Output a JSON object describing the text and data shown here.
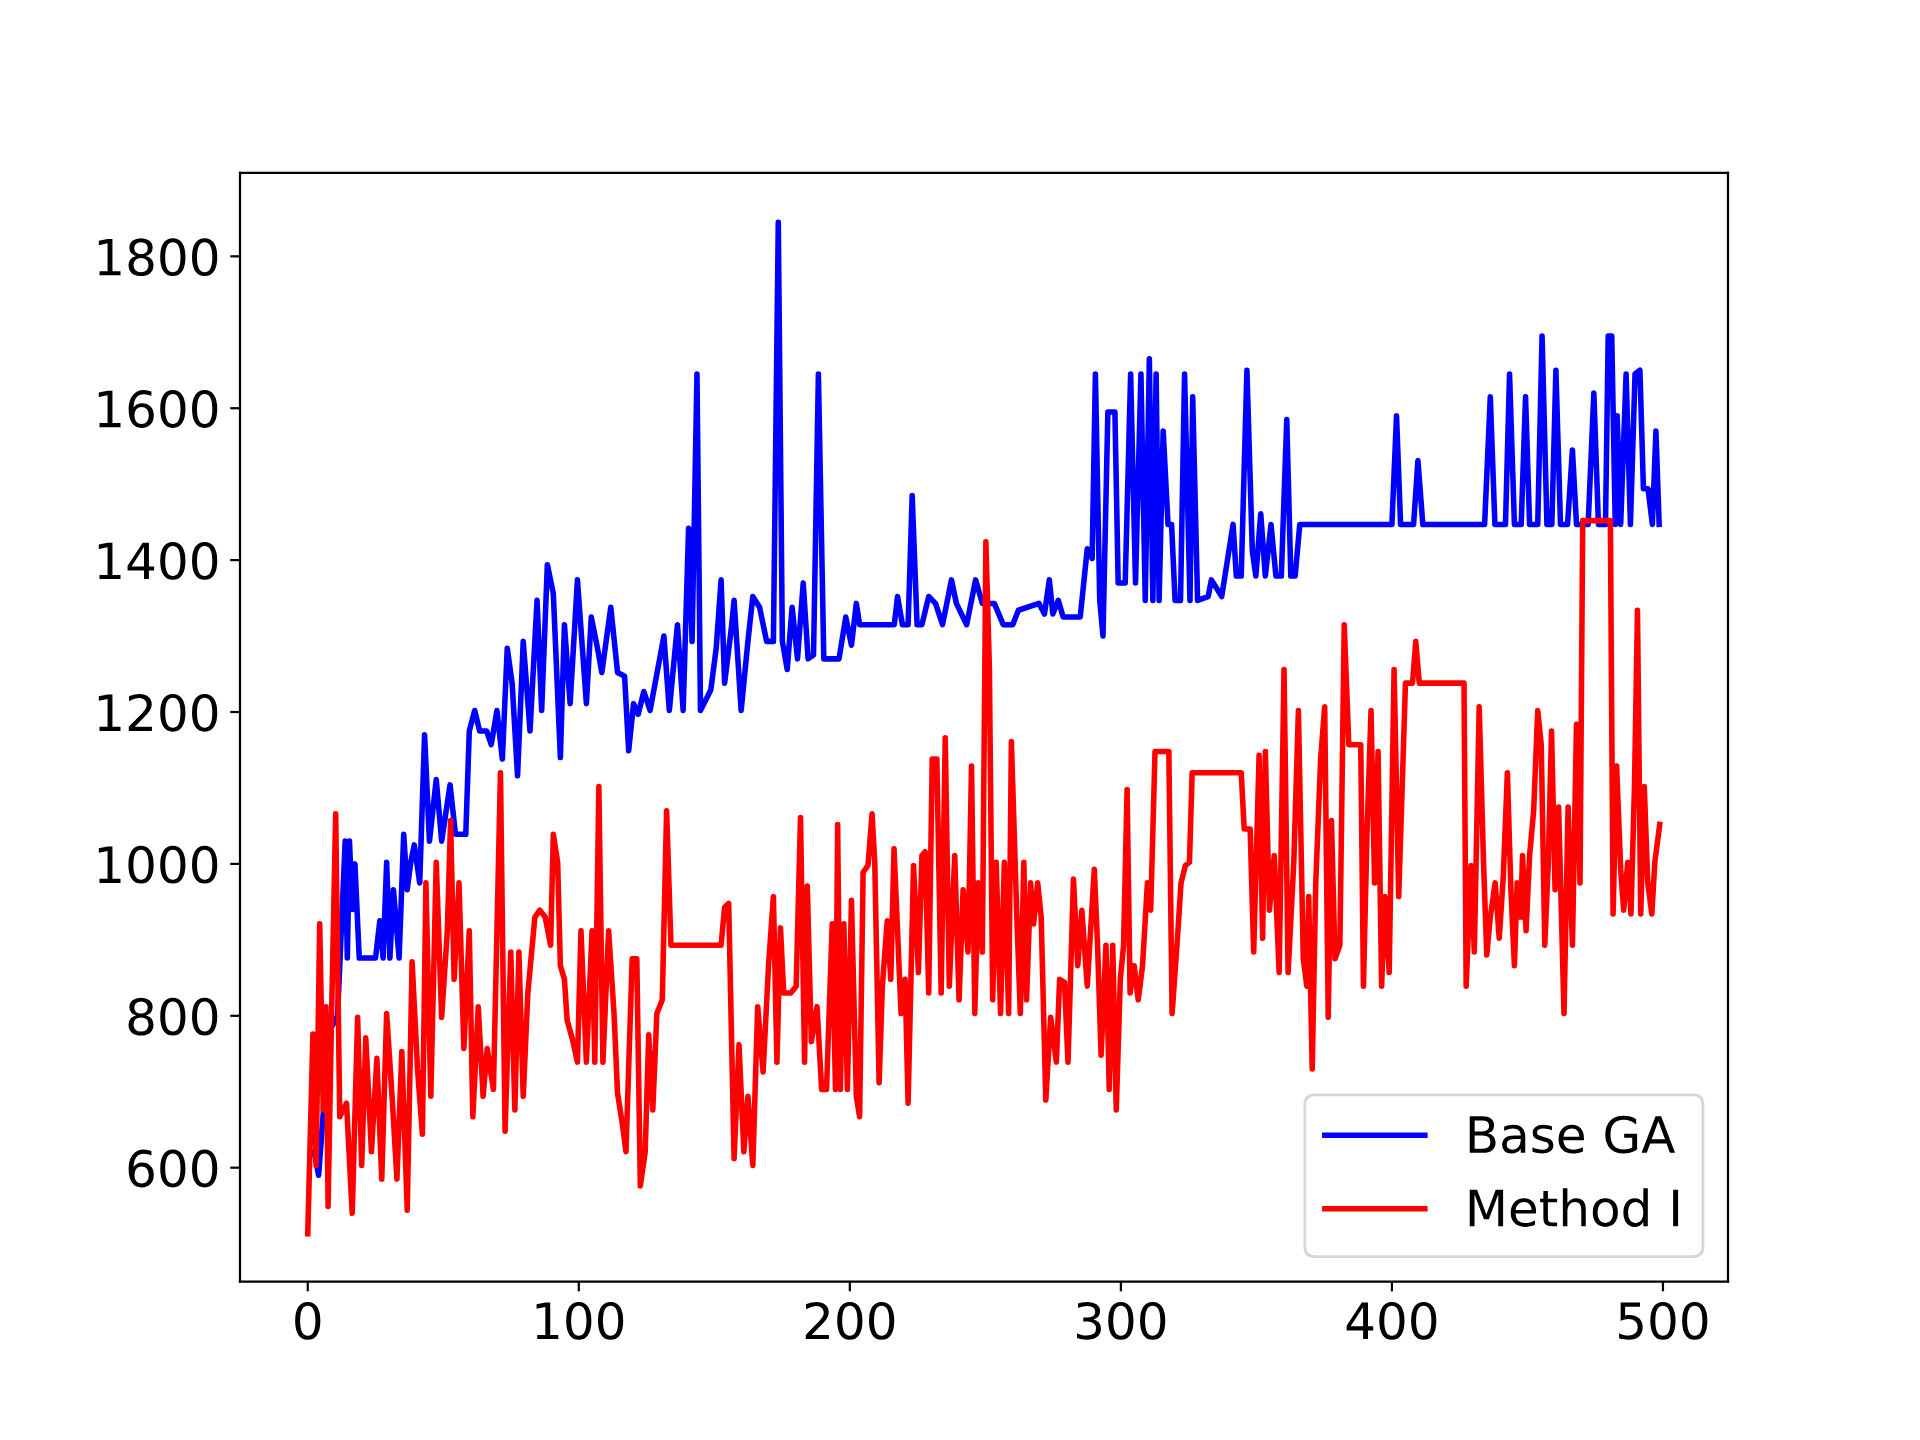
{
  "chart_data": {
    "type": "line",
    "xlim": [
      -25,
      524
    ],
    "ylim": [
      450,
      1910
    ],
    "xticks": [
      0,
      100,
      200,
      300,
      400,
      500
    ],
    "yticks": [
      600,
      800,
      1000,
      1200,
      1400,
      1600,
      1800
    ],
    "grid": false,
    "legend": "bottom right",
    "line_style": "solid",
    "marker": "none",
    "series": [
      {
        "name": "Base GA",
        "color": "#0000ff",
        "x": [
          2.4,
          4,
          8,
          11,
          13.8,
          14.6,
          15.4,
          16.4,
          17.4,
          19,
          25,
          26.6,
          27.8,
          29.1,
          30.3,
          31.6,
          33.7,
          35.4,
          36.7,
          38,
          39.3,
          41.3,
          43.1,
          44.9,
          47.4,
          49.4,
          52.5,
          54.5,
          58.3,
          59.6,
          61.6,
          63.4,
          66,
          67.7,
          69.8,
          71.8,
          73.6,
          75.4,
          77.4,
          79.5,
          82,
          84.6,
          86.3,
          88.4,
          90.6,
          93.2,
          94.7,
          96.8,
          99.5,
          102.8,
          104.6,
          106.9,
          108.5,
          111.8,
          114.3,
          116.9,
          118.4,
          120.2,
          121.9,
          124,
          126.3,
          131.4,
          133.4,
          136.4,
          138.5,
          140.5,
          141.8,
          143.6,
          144.9,
          148.7,
          150.7,
          152.5,
          153.8,
          156.3,
          157.3,
          159.9,
          162.4,
          164.2,
          166.7,
          169.3,
          171.8,
          173.6,
          175.1,
          176.9,
          178.7,
          180.7,
          182.8,
          184.6,
          186.6,
          188.4,
          190.4,
          196,
          198.5,
          200.6,
          202.4,
          203.6,
          216.4,
          217.6,
          219.4,
          221.5,
          223,
          224.8,
          226.6,
          229.1,
          231.6,
          234.2,
          237.5,
          239.3,
          243.1,
          246.4,
          248.9,
          253.3,
          256.6,
          260.1,
          262.2,
          269.8,
          271.8,
          273.6,
          274.9,
          276.9,
          278.7,
          285,
          287.6,
          289.4,
          290.6,
          292.2,
          293.4,
          295.2,
          297.8,
          299,
          301.6,
          303.6,
          305.4,
          307.4,
          309,
          310.5,
          311.8,
          313,
          314.1,
          315.6,
          317.4,
          318.7,
          320,
          322,
          323.5,
          325.5,
          326.5,
          328.3,
          332.2,
          333.4,
          337.2,
          341.4,
          342.6,
          344.4,
          346.5,
          348.5,
          349.8,
          351.6,
          353.3,
          355.4,
          357.2,
          359.2,
          361.2,
          362.7,
          364.3,
          366,
          400,
          401.7,
          403.2,
          408,
          409.6,
          411.4,
          434.2,
          436.3,
          438,
          441.9,
          443.4,
          445.2,
          447.7,
          449.3,
          450.8,
          453.8,
          455.4,
          457.2,
          459,
          460.5,
          462.2,
          464.8,
          466.6,
          468.1,
          472.4,
          474.5,
          476.2,
          478.8,
          479.8,
          481.1,
          482.4,
          483.1,
          484.4,
          486.4,
          488,
          489.7,
          491.5,
          492.8,
          494.5,
          496.1,
          497.4,
          498.6
        ],
        "values": [
          621,
          590,
          780,
          800,
          1030,
          876,
          1030,
          940,
          1000,
          876,
          876,
          925,
          876,
          1002,
          876,
          966,
          876,
          1039,
          966,
          1002,
          1025,
          975,
          1170,
          1030,
          1111,
          1030,
          1104,
          1039,
          1039,
          1175,
          1202,
          1175,
          1175,
          1157,
          1202,
          1138,
          1284,
          1238,
          1116,
          1293,
          1175,
          1347,
          1202,
          1394,
          1356,
          1140,
          1315,
          1211,
          1374,
          1211,
          1325,
          1284,
          1252,
          1338,
          1252,
          1247,
          1149,
          1211,
          1197,
          1227,
          1202,
          1300,
          1202,
          1315,
          1202,
          1442,
          1293,
          1645,
          1202,
          1229,
          1284,
          1374,
          1238,
          1311,
          1347,
          1202,
          1293,
          1352,
          1338,
          1293,
          1293,
          1845,
          1293,
          1256,
          1338,
          1270,
          1370,
          1270,
          1275,
          1645,
          1270,
          1270,
          1325,
          1288,
          1343,
          1315,
          1315,
          1352,
          1315,
          1315,
          1485,
          1315,
          1315,
          1352,
          1343,
          1315,
          1374,
          1343,
          1315,
          1374,
          1343,
          1343,
          1315,
          1315,
          1334,
          1343,
          1329,
          1374,
          1329,
          1347,
          1325,
          1325,
          1415,
          1402,
          1645,
          1347,
          1300,
          1595,
          1595,
          1370,
          1370,
          1645,
          1370,
          1645,
          1347,
          1665,
          1347,
          1645,
          1347,
          1570,
          1447,
          1447,
          1347,
          1347,
          1645,
          1347,
          1615,
          1347,
          1352,
          1374,
          1352,
          1447,
          1379,
          1379,
          1650,
          1412,
          1379,
          1461,
          1379,
          1447,
          1379,
          1379,
          1585,
          1379,
          1379,
          1447,
          1447,
          1590,
          1447,
          1447,
          1531,
          1447,
          1447,
          1615,
          1447,
          1447,
          1645,
          1447,
          1447,
          1615,
          1447,
          1447,
          1695,
          1447,
          1447,
          1650,
          1447,
          1447,
          1545,
          1447,
          1447,
          1620,
          1447,
          1447,
          1695,
          1695,
          1447,
          1590,
          1447,
          1645,
          1447,
          1645,
          1650,
          1494,
          1494,
          1447,
          1570,
          1447
        ]
      },
      {
        "name": "Method I",
        "color": "#ff0000",
        "x": [
          0,
          1.9,
          3.1,
          4.4,
          5.7,
          6.7,
          7.5,
          8.7,
          10.3,
          11.8,
          14.3,
          16.4,
          18.4,
          19.9,
          21.4,
          23.5,
          25.5,
          27.3,
          29.1,
          31.1,
          32.9,
          34.7,
          36.7,
          38.5,
          40.5,
          42.3,
          43.6,
          45.4,
          47.4,
          49.4,
          51.5,
          52.7,
          54,
          55.8,
          57.6,
          59.6,
          60.9,
          62.9,
          64.7,
          66.2,
          68.5,
          71.1,
          72.8,
          74.9,
          76.4,
          77.9,
          79.5,
          81.2,
          83.8,
          85.6,
          87.6,
          89.6,
          90.6,
          92.2,
          93.2,
          94.7,
          95.7,
          97.8,
          99.5,
          100.8,
          102.8,
          104.9,
          105.9,
          107.4,
          108.9,
          111,
          113,
          114.3,
          116.1,
          117.4,
          119.7,
          121.4,
          122.7,
          124.5,
          125.8,
          127.3,
          128.8,
          130.8,
          132.4,
          134,
          152.5,
          153.8,
          155.3,
          157.3,
          159.1,
          160.9,
          162.4,
          164.2,
          166,
          168,
          170,
          171.8,
          173.1,
          174.4,
          175.6,
          178.2,
          180.2,
          181.8,
          183.3,
          184.3,
          185.8,
          187.9,
          189.6,
          191.4,
          193.5,
          194.7,
          195.5,
          196.5,
          197.8,
          199.1,
          200.6,
          202.4,
          203.6,
          204.9,
          206.7,
          208.2,
          209.2,
          210.8,
          212,
          213.8,
          215.1,
          216.3,
          217.6,
          218.9,
          220.4,
          221.5,
          223.5,
          225.3,
          226.6,
          227.8,
          229.1,
          230.4,
          232.1,
          233.7,
          235.2,
          236.7,
          238.7,
          240.3,
          241.8,
          243.6,
          244.9,
          246.1,
          247.4,
          248.9,
          250.2,
          251.5,
          252.7,
          254,
          255.6,
          257,
          258.6,
          259.6,
          261.7,
          262.9,
          264.2,
          265.2,
          266.7,
          267.8,
          269.3,
          270.6,
          272.3,
          274.1,
          276.2,
          277.4,
          279.2,
          280.5,
          282.5,
          284.1,
          285.6,
          287.6,
          290.2,
          291.4,
          292.7,
          294.5,
          295.7,
          297,
          298.3,
          299.8,
          301,
          302.3,
          303.4,
          304.9,
          306.4,
          308,
          309.8,
          311,
          312.6,
          317.7,
          318.9,
          320.7,
          322.2,
          323.8,
          325.3,
          326.3,
          344.4,
          345.5,
          347.7,
          349,
          351,
          352.3,
          353.3,
          354.8,
          356.6,
          358.4,
          360.2,
          361.7,
          363.8,
          365.5,
          367.3,
          368.6,
          369.3,
          370.6,
          371.9,
          373.7,
          375.2,
          376.5,
          377.7,
          379,
          380.8,
          382.4,
          384.1,
          388.5,
          389.5,
          390.8,
          392.3,
          393.6,
          394.9,
          396.2,
          397.4,
          399,
          400.8,
          402.5,
          405,
          407.6,
          408.8,
          410.1,
          426.6,
          427.4,
          429.2,
          430.4,
          432.2,
          433.8,
          435,
          436.3,
          438.1,
          439.6,
          441.1,
          442.6,
          443.9,
          445.2,
          446.2,
          447.5,
          448.2,
          449.5,
          450.8,
          452.3,
          453.8,
          455.1,
          456.4,
          457.7,
          458.9,
          460.2,
          461.5,
          463.5,
          465,
          466.6,
          468.1,
          469.4,
          470.4,
          480.6,
          481.6,
          482.9,
          484.4,
          485.5,
          487,
          488.2,
          489.5,
          490.6,
          491.8,
          493.1,
          494.4,
          495.9,
          497,
          498.8
        ],
        "values": [
          513,
          776,
          603,
          921,
          676,
          812,
          549,
          785,
          1066,
          667,
          685,
          540,
          798,
          603,
          771,
          621,
          744,
          585,
          803,
          694,
          585,
          753,
          544,
          871,
          730,
          644,
          975,
          694,
          1002,
          798,
          912,
          1057,
          848,
          975,
          757,
          912,
          667,
          812,
          694,
          757,
          703,
          1120,
          648,
          884,
          676,
          884,
          694,
          830,
          930,
          939,
          930,
          893,
          1039,
          1002,
          866,
          848,
          794,
          767,
          739,
          912,
          739,
          912,
          739,
          1102,
          739,
          912,
          803,
          698,
          657,
          621,
          875,
          875,
          576,
          621,
          775,
          676,
          803,
          821,
          1070,
          893,
          893,
          943,
          948,
          612,
          762,
          621,
          694,
          603,
          812,
          726,
          866,
          957,
          739,
          916,
          830,
          830,
          839,
          1061,
          739,
          971,
          766,
          812,
          703,
          703,
          921,
          703,
          1052,
          703,
          921,
          703,
          952,
          694,
          667,
          989,
          998,
          1066,
          1002,
          712,
          839,
          925,
          848,
          1020,
          912,
          803,
          848,
          685,
          998,
          857,
          1011,
          1016,
          830,
          1138,
          1138,
          830,
          1166,
          839,
          1011,
          821,
          966,
          884,
          1129,
          803,
          975,
          884,
          1424,
          1256,
          821,
          1002,
          803,
          1002,
          803,
          1161,
          921,
          803,
          1002,
          821,
          975,
          921,
          975,
          930,
          689,
          798,
          739,
          848,
          844,
          739,
          980,
          866,
          939,
          839,
          993,
          893,
          748,
          893,
          703,
          893,
          676,
          848,
          893,
          1098,
          830,
          866,
          821,
          866,
          975,
          939,
          1148,
          1148,
          803,
          893,
          975,
          998,
          1002,
          1120,
          1120,
          1046,
          1046,
          884,
          1143,
          902,
          1148,
          939,
          1011,
          857,
          1256,
          857,
          1002,
          1202,
          875,
          839,
          957,
          730,
          975,
          1138,
          1207,
          798,
          1057,
          875,
          893,
          1315,
          1157,
          1157,
          839,
          1039,
          1202,
          975,
          1148,
          839,
          957,
          857,
          1256,
          957,
          1238,
          1238,
          1293,
          1238,
          1238,
          839,
          998,
          884,
          1207,
          1002,
          880,
          930,
          975,
          902,
          984,
          1120,
          966,
          866,
          975,
          930,
          1011,
          912,
          1011,
          1070,
          1202,
          1157,
          893,
          1002,
          1175,
          966,
          1075,
          803,
          1075,
          893,
          1184,
          975,
          1452,
          1452,
          934,
          1129,
          993,
          939,
          1002,
          934,
          1102,
          1334,
          934,
          1102,
          975,
          934,
          1002,
          1052
        ]
      }
    ]
  }
}
